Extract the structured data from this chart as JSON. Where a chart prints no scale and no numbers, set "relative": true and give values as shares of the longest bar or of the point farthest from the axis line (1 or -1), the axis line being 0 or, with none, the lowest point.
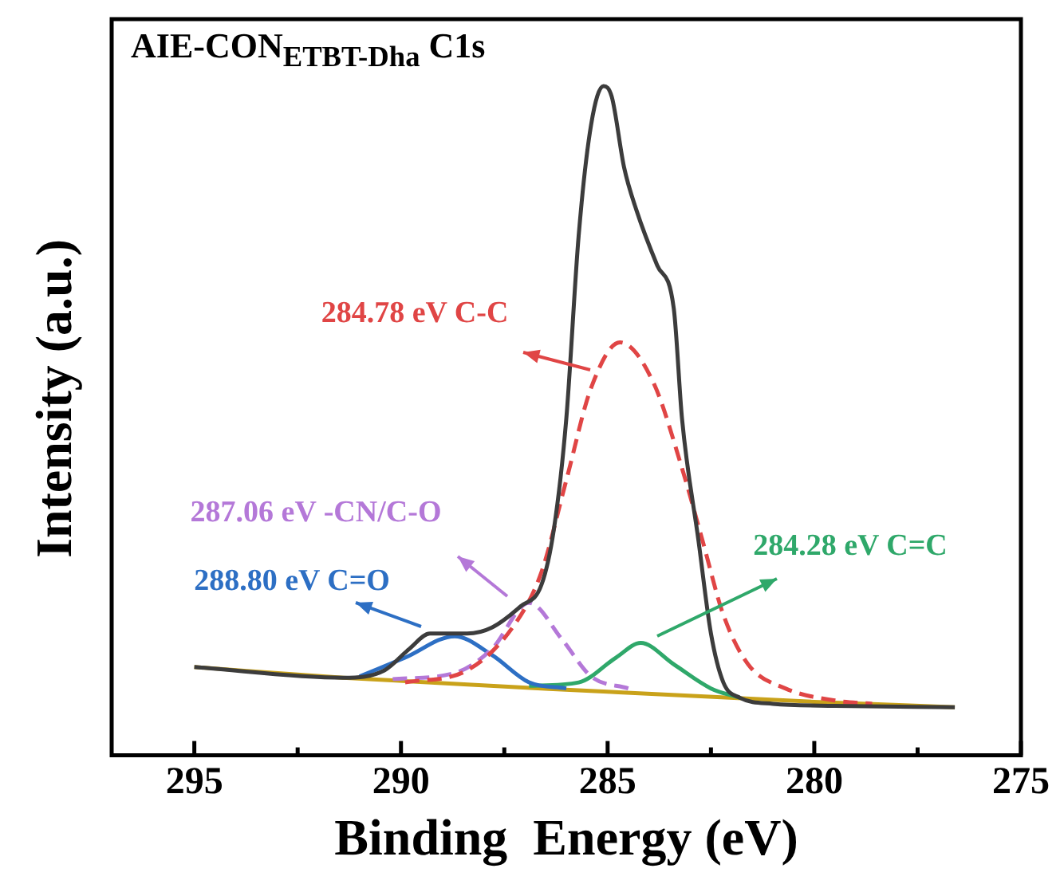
{
  "chart_data": {
    "type": "line",
    "title": "AIE-CON$_{ETBT-Dha}$ C1s",
    "xlabel": "Binding  Energy (eV)",
    "ylabel": "Intensity (a.u.)",
    "relative": true,
    "xlim": [
      297,
      275
    ],
    "xticks": [
      295,
      {
        "value": 292.5,
        "label": null
      },
      290,
      {
        "value": 287.5,
        "label": null
      },
      285,
      {
        "value": 282.5,
        "label": null
      },
      280,
      {
        "value": 277.5,
        "label": null
      },
      275
    ],
    "grid": false,
    "legend": false,
    "marker": "none",
    "series": [
      {
        "color": "#3c3c3c",
        "line_style": "solid",
        "x": [
          295,
          291.4,
          290.4,
          289.8,
          289.3,
          288.4,
          287.8,
          287.1,
          286.6,
          286.3,
          286.0,
          285.7,
          285.4,
          285.1,
          284.9,
          284.6,
          284.3,
          283.8,
          283.4,
          283.2,
          282.8,
          282.5,
          282.2,
          281.8,
          281.0,
          279.5,
          276.6
        ],
        "values": [
          0.132,
          0.116,
          0.127,
          0.159,
          0.182,
          0.182,
          0.191,
          0.223,
          0.255,
          0.338,
          0.503,
          0.777,
          0.942,
          1,
          0.984,
          0.878,
          0.814,
          0.732,
          0.668,
          0.503,
          0.32,
          0.182,
          0.109,
          0.086,
          0.077,
          0.074,
          0.072
        ]
      },
      {
        "color": "#e04545",
        "line_style": "dashed",
        "x": [
          289.9,
          288.4,
          287.2,
          286.6,
          286.0,
          285.4,
          284.7,
          283.9,
          283.2,
          282.7,
          282.2,
          281.6,
          280.7,
          279.5,
          278.6
        ],
        "values": [
          0.109,
          0.127,
          0.2,
          0.274,
          0.411,
          0.549,
          0.617,
          0.558,
          0.429,
          0.32,
          0.21,
          0.136,
          0.1,
          0.082,
          0.077
        ]
      },
      {
        "color": "#b478d8",
        "line_style": "dashed",
        "x": [
          290.2,
          288.7,
          287.8,
          286.9,
          286.1,
          285.4,
          284.5
        ],
        "values": [
          0.114,
          0.123,
          0.159,
          0.228,
          0.173,
          0.118,
          0.1
        ]
      },
      {
        "color": "#2d6fc4",
        "line_style": "solid",
        "x": [
          291.0,
          289.9,
          288.7,
          287.8,
          286.9,
          286.0
        ],
        "values": [
          0.118,
          0.146,
          0.178,
          0.15,
          0.109,
          0.1
        ]
      },
      {
        "color": "#2fa86a",
        "line_style": "solid",
        "x": [
          286.9,
          285.7,
          284.8,
          284.2,
          283.4,
          282.5,
          281.8
        ],
        "values": [
          0.104,
          0.109,
          0.146,
          0.168,
          0.136,
          0.1,
          0.086
        ]
      },
      {
        "color": "#c9a21a",
        "line_style": "solid",
        "x": [
          295,
          291.4,
          285,
          280,
          276.6
        ],
        "values": [
          0.132,
          0.116,
          0.095,
          0.08,
          0.072
        ]
      }
    ],
    "annotations": [
      "284.78 eV C-C",
      "287.06 eV -CN/C-O",
      "288.80 eV C=O",
      "284.28 eV C=C"
    ]
  }
}
